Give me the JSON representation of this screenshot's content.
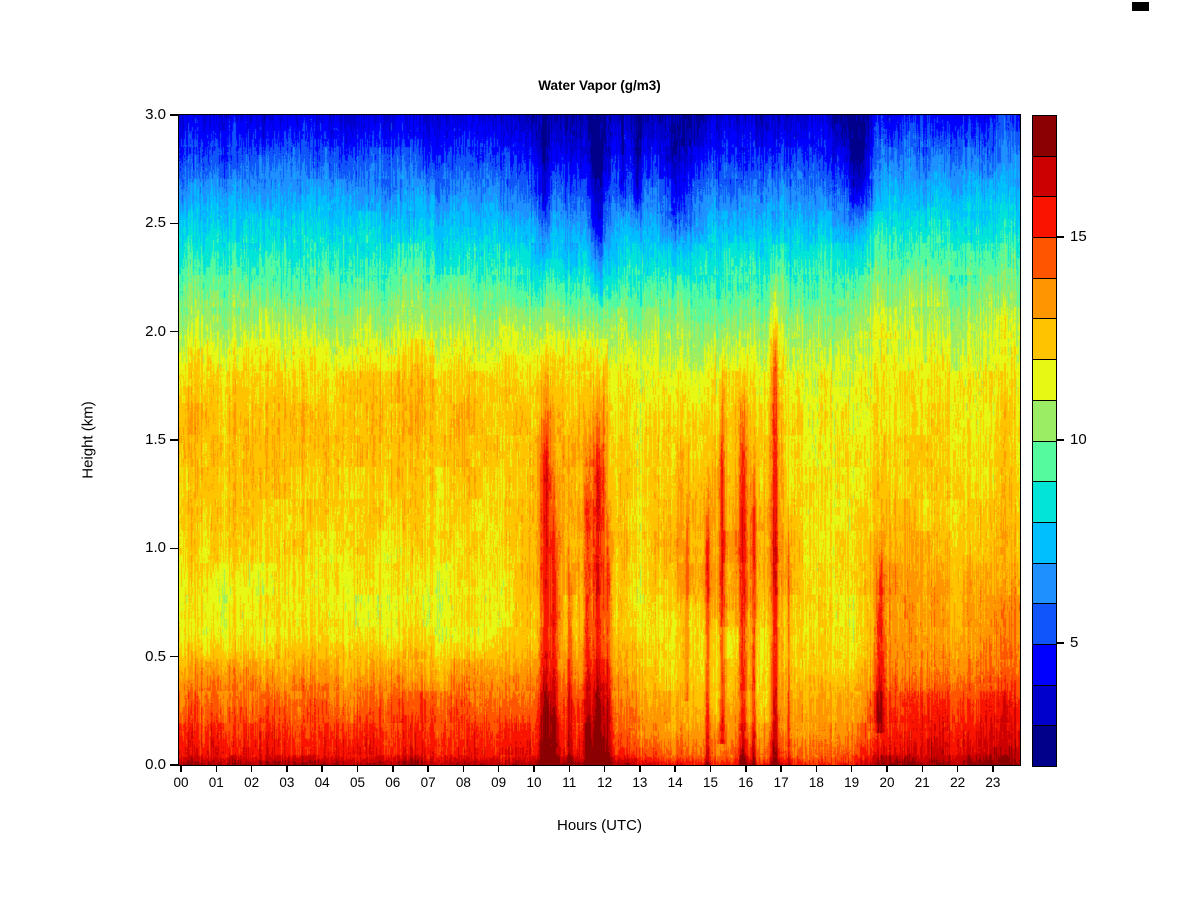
{
  "title": "Water Vapor (g/m3)",
  "xlabel": "Hours (UTC)",
  "ylabel": "Height (km)",
  "x_ticks": [
    "00",
    "01",
    "02",
    "03",
    "04",
    "05",
    "06",
    "07",
    "08",
    "09",
    "10",
    "11",
    "12",
    "13",
    "14",
    "15",
    "16",
    "17",
    "18",
    "19",
    "20",
    "21",
    "22",
    "23"
  ],
  "y_ticks": [
    {
      "km": 0.0,
      "label": "0.0"
    },
    {
      "km": 0.5,
      "label": "0.5"
    },
    {
      "km": 1.0,
      "label": "1.0"
    },
    {
      "km": 1.5,
      "label": "1.5"
    },
    {
      "km": 2.0,
      "label": "2.0"
    },
    {
      "km": 2.5,
      "label": "2.5"
    },
    {
      "km": 3.0,
      "label": "3.0"
    }
  ],
  "colorbar": {
    "min": 2,
    "max": 18,
    "ticks": [
      {
        "value": 5,
        "label": "5"
      },
      {
        "value": 10,
        "label": "10"
      },
      {
        "value": 15,
        "label": "15"
      }
    ]
  },
  "chart_data": {
    "type": "heatmap",
    "title": "Water Vapor (g/m3)",
    "xlabel": "Hours (UTC)",
    "ylabel": "Height (km)",
    "x_range": [
      0,
      23.8
    ],
    "y_range": [
      0,
      3.0
    ],
    "value_range": [
      2,
      18
    ],
    "palette": [
      "#00008B",
      "#0000CD",
      "#0000FF",
      "#0F55FA",
      "#1E90FF",
      "#00BFFF",
      "#00E5D8",
      "#55FA9F",
      "#9BEE64",
      "#E6F813",
      "#FFC300",
      "#FF9500",
      "#FF5500",
      "#FA1400",
      "#CC0000",
      "#8B0000"
    ],
    "hours": [
      0,
      1,
      2,
      3,
      4,
      5,
      6,
      7,
      8,
      9,
      10,
      11,
      12,
      13,
      14,
      15,
      16,
      17,
      18,
      19,
      20,
      21,
      22,
      23
    ],
    "heights": [
      0.0,
      0.05,
      0.15,
      0.3,
      0.45,
      0.6,
      0.8,
      1.0,
      1.3,
      1.6,
      1.8,
      2.0,
      2.2,
      2.4,
      2.6,
      2.8,
      3.0
    ],
    "values": [
      [
        17.3,
        15.7,
        15.2,
        14.4,
        13.1,
        11.9,
        11.7,
        12.2,
        12.5,
        12.6,
        12.1,
        10.9,
        9.6,
        8.4,
        7.0,
        5.4,
        3.9
      ],
      [
        17.3,
        15.8,
        15.2,
        14.4,
        13.1,
        11.8,
        11.6,
        12.3,
        12.5,
        12.6,
        12.2,
        10.9,
        9.7,
        8.5,
        7.0,
        5.3,
        3.8
      ],
      [
        17.2,
        15.7,
        15.1,
        14.3,
        13.0,
        11.8,
        11.6,
        12.1,
        12.6,
        12.7,
        12.2,
        11.0,
        9.7,
        8.4,
        7.1,
        5.5,
        4.0
      ],
      [
        17.2,
        15.7,
        15.2,
        14.3,
        13.0,
        11.8,
        11.7,
        12.2,
        12.5,
        12.6,
        12.1,
        10.9,
        9.6,
        8.5,
        7.2,
        5.6,
        4.1
      ],
      [
        17.2,
        15.6,
        15.1,
        14.3,
        13.0,
        11.9,
        11.7,
        12.1,
        12.4,
        12.6,
        12.2,
        11.0,
        9.8,
        8.6,
        7.2,
        5.6,
        4.2
      ],
      [
        17.2,
        15.7,
        15.1,
        14.3,
        13.1,
        11.9,
        11.6,
        12.0,
        12.4,
        12.7,
        12.2,
        11.0,
        9.8,
        8.6,
        7.1,
        5.5,
        4.0
      ],
      [
        17.2,
        15.7,
        15.2,
        14.4,
        13.1,
        11.9,
        11.7,
        12.1,
        12.5,
        12.9,
        12.3,
        11.0,
        9.7,
        8.5,
        7.0,
        5.4,
        3.9
      ],
      [
        17.2,
        15.7,
        15.2,
        14.4,
        13.1,
        11.9,
        11.6,
        12.1,
        12.5,
        12.9,
        12.4,
        11.1,
        9.8,
        8.4,
        6.9,
        5.3,
        3.8
      ],
      [
        17.2,
        15.6,
        15.1,
        14.3,
        13.0,
        11.8,
        11.6,
        12.0,
        12.4,
        12.6,
        12.2,
        11.0,
        9.7,
        8.3,
        6.8,
        5.2,
        3.7
      ],
      [
        17.2,
        15.6,
        15.1,
        14.2,
        13.0,
        11.8,
        11.7,
        12.1,
        12.4,
        12.5,
        12.1,
        10.9,
        9.6,
        8.2,
        6.7,
        5.1,
        3.6
      ],
      [
        17.3,
        15.8,
        15.3,
        14.5,
        13.3,
        12.6,
        12.8,
        12.9,
        13.0,
        12.8,
        12.3,
        11.0,
        9.3,
        7.8,
        6.2,
        4.6,
        3.2
      ],
      [
        17.3,
        15.9,
        15.4,
        14.6,
        13.5,
        12.9,
        13.0,
        13.1,
        13.1,
        12.9,
        12.4,
        11.0,
        9.1,
        7.5,
        5.8,
        4.2,
        2.9
      ],
      [
        17.2,
        15.8,
        15.2,
        14.4,
        13.2,
        12.6,
        12.7,
        12.8,
        12.8,
        12.5,
        12.0,
        10.8,
        9.2,
        7.6,
        6.0,
        4.4,
        3.0
      ],
      [
        16.6,
        14.9,
        13.9,
        13.1,
        12.5,
        11.9,
        11.7,
        11.9,
        12.1,
        11.7,
        11.3,
        10.4,
        9.2,
        7.7,
        6.1,
        4.5,
        3.1
      ],
      [
        15.8,
        14.2,
        13.3,
        12.6,
        12.1,
        11.8,
        12.6,
        12.9,
        12.4,
        11.8,
        11.3,
        10.4,
        9.1,
        7.5,
        5.9,
        4.3,
        3.0
      ],
      [
        15.6,
        14.0,
        13.2,
        12.4,
        12.0,
        11.9,
        12.9,
        13.1,
        12.6,
        12.1,
        11.6,
        10.5,
        9.3,
        7.9,
        6.3,
        4.7,
        3.3
      ],
      [
        15.7,
        14.1,
        13.3,
        12.5,
        12.1,
        12.0,
        13.0,
        13.2,
        12.7,
        12.2,
        11.7,
        10.6,
        9.4,
        8.0,
        6.4,
        4.8,
        3.4
      ],
      [
        15.8,
        14.2,
        13.4,
        12.7,
        12.2,
        12.0,
        12.7,
        12.9,
        12.4,
        12.0,
        11.6,
        10.6,
        9.5,
        8.2,
        6.6,
        5.0,
        3.6
      ],
      [
        15.5,
        14.3,
        13.4,
        13.1,
        12.1,
        11.9,
        11.9,
        12.0,
        11.9,
        11.7,
        11.4,
        10.5,
        9.4,
        8.2,
        6.6,
        5.0,
        3.6
      ],
      [
        15.6,
        14.4,
        13.5,
        13.1,
        12.0,
        11.8,
        11.8,
        11.9,
        11.8,
        11.6,
        11.3,
        10.4,
        9.3,
        7.9,
        5.9,
        4.0,
        2.6
      ],
      [
        17.4,
        16.3,
        15.6,
        14.8,
        13.9,
        13.6,
        13.5,
        13.0,
        12.3,
        12.0,
        11.8,
        11.1,
        10.1,
        8.9,
        7.6,
        6.0,
        4.4
      ],
      [
        17.5,
        16.4,
        15.8,
        15.0,
        13.9,
        13.6,
        13.4,
        12.9,
        12.3,
        12.1,
        11.9,
        11.2,
        10.2,
        9.0,
        7.7,
        6.2,
        4.6
      ],
      [
        17.5,
        16.5,
        15.9,
        15.1,
        14.0,
        13.5,
        13.3,
        12.8,
        12.4,
        12.1,
        11.9,
        11.2,
        10.2,
        9.1,
        7.8,
        6.2,
        4.7
      ],
      [
        17.6,
        16.6,
        16.0,
        15.2,
        14.2,
        13.6,
        13.2,
        12.7,
        12.3,
        12.0,
        11.8,
        11.1,
        10.1,
        9.0,
        7.7,
        6.1,
        4.7
      ]
    ],
    "streaks": [
      {
        "t": 10.35,
        "w": 0.12,
        "h0": 0,
        "h1": 1.8,
        "s": 2.6,
        "dir": "up"
      },
      {
        "t": 10.62,
        "w": 0.08,
        "h0": 0,
        "h1": 1.3,
        "s": 2.0,
        "dir": "up"
      },
      {
        "t": 11.05,
        "w": 0.05,
        "h0": 0,
        "h1": 1.0,
        "s": 1.6,
        "dir": "up"
      },
      {
        "t": 11.55,
        "w": 0.06,
        "h0": 0,
        "h1": 1.5,
        "s": 2.0,
        "dir": "up"
      },
      {
        "t": 11.85,
        "w": 0.14,
        "h0": 0,
        "h1": 1.85,
        "s": 3.0,
        "dir": "up"
      },
      {
        "t": 12.15,
        "w": 0.06,
        "h0": 0,
        "h1": 1.2,
        "s": 2.0,
        "dir": "up"
      },
      {
        "t": 14.35,
        "w": 0.05,
        "h0": 0.3,
        "h1": 1.2,
        "s": 1.6,
        "dir": "up"
      },
      {
        "t": 14.95,
        "w": 0.05,
        "h0": 0,
        "h1": 1.4,
        "s": 2.4,
        "dir": "up"
      },
      {
        "t": 15.35,
        "w": 0.06,
        "h0": 0.1,
        "h1": 1.9,
        "s": 2.6,
        "dir": "up"
      },
      {
        "t": 15.95,
        "w": 0.09,
        "h0": 0,
        "h1": 1.95,
        "s": 3.0,
        "dir": "up"
      },
      {
        "t": 16.25,
        "w": 0.05,
        "h0": 0,
        "h1": 1.6,
        "s": 2.4,
        "dir": "up"
      },
      {
        "t": 16.85,
        "w": 0.07,
        "h0": 0,
        "h1": 2.3,
        "s": 3.2,
        "dir": "up"
      },
      {
        "t": 17.25,
        "w": 0.04,
        "h0": 0,
        "h1": 1.2,
        "s": 1.8,
        "dir": "up"
      },
      {
        "t": 19.82,
        "w": 0.07,
        "h0": 0.15,
        "h1": 0.95,
        "s": 2.2,
        "dir": "up"
      },
      {
        "t": 10.35,
        "w": 0.1,
        "h0": 2.25,
        "h1": 3.0,
        "s": -2.0,
        "dir": "down"
      },
      {
        "t": 11.85,
        "w": 0.16,
        "h0": 2.1,
        "h1": 3.0,
        "s": -2.4,
        "dir": "down"
      },
      {
        "t": 12.55,
        "w": 0.07,
        "h0": 2.5,
        "h1": 3.0,
        "s": -1.6,
        "dir": "down"
      },
      {
        "t": 12.95,
        "w": 0.07,
        "h0": 2.45,
        "h1": 3.0,
        "s": -1.8,
        "dir": "down"
      },
      {
        "t": 14.1,
        "w": 0.25,
        "h0": 2.35,
        "h1": 3.0,
        "s": -1.4,
        "dir": "down"
      },
      {
        "t": 19.25,
        "w": 0.22,
        "h0": 2.45,
        "h1": 3.0,
        "s": -1.8,
        "dir": "down"
      }
    ],
    "noise": {
      "column": 1.0,
      "patch": 0.55,
      "needle": 0.75,
      "tall": 0.5,
      "blob": 0.55,
      "fine": 0.3
    }
  }
}
